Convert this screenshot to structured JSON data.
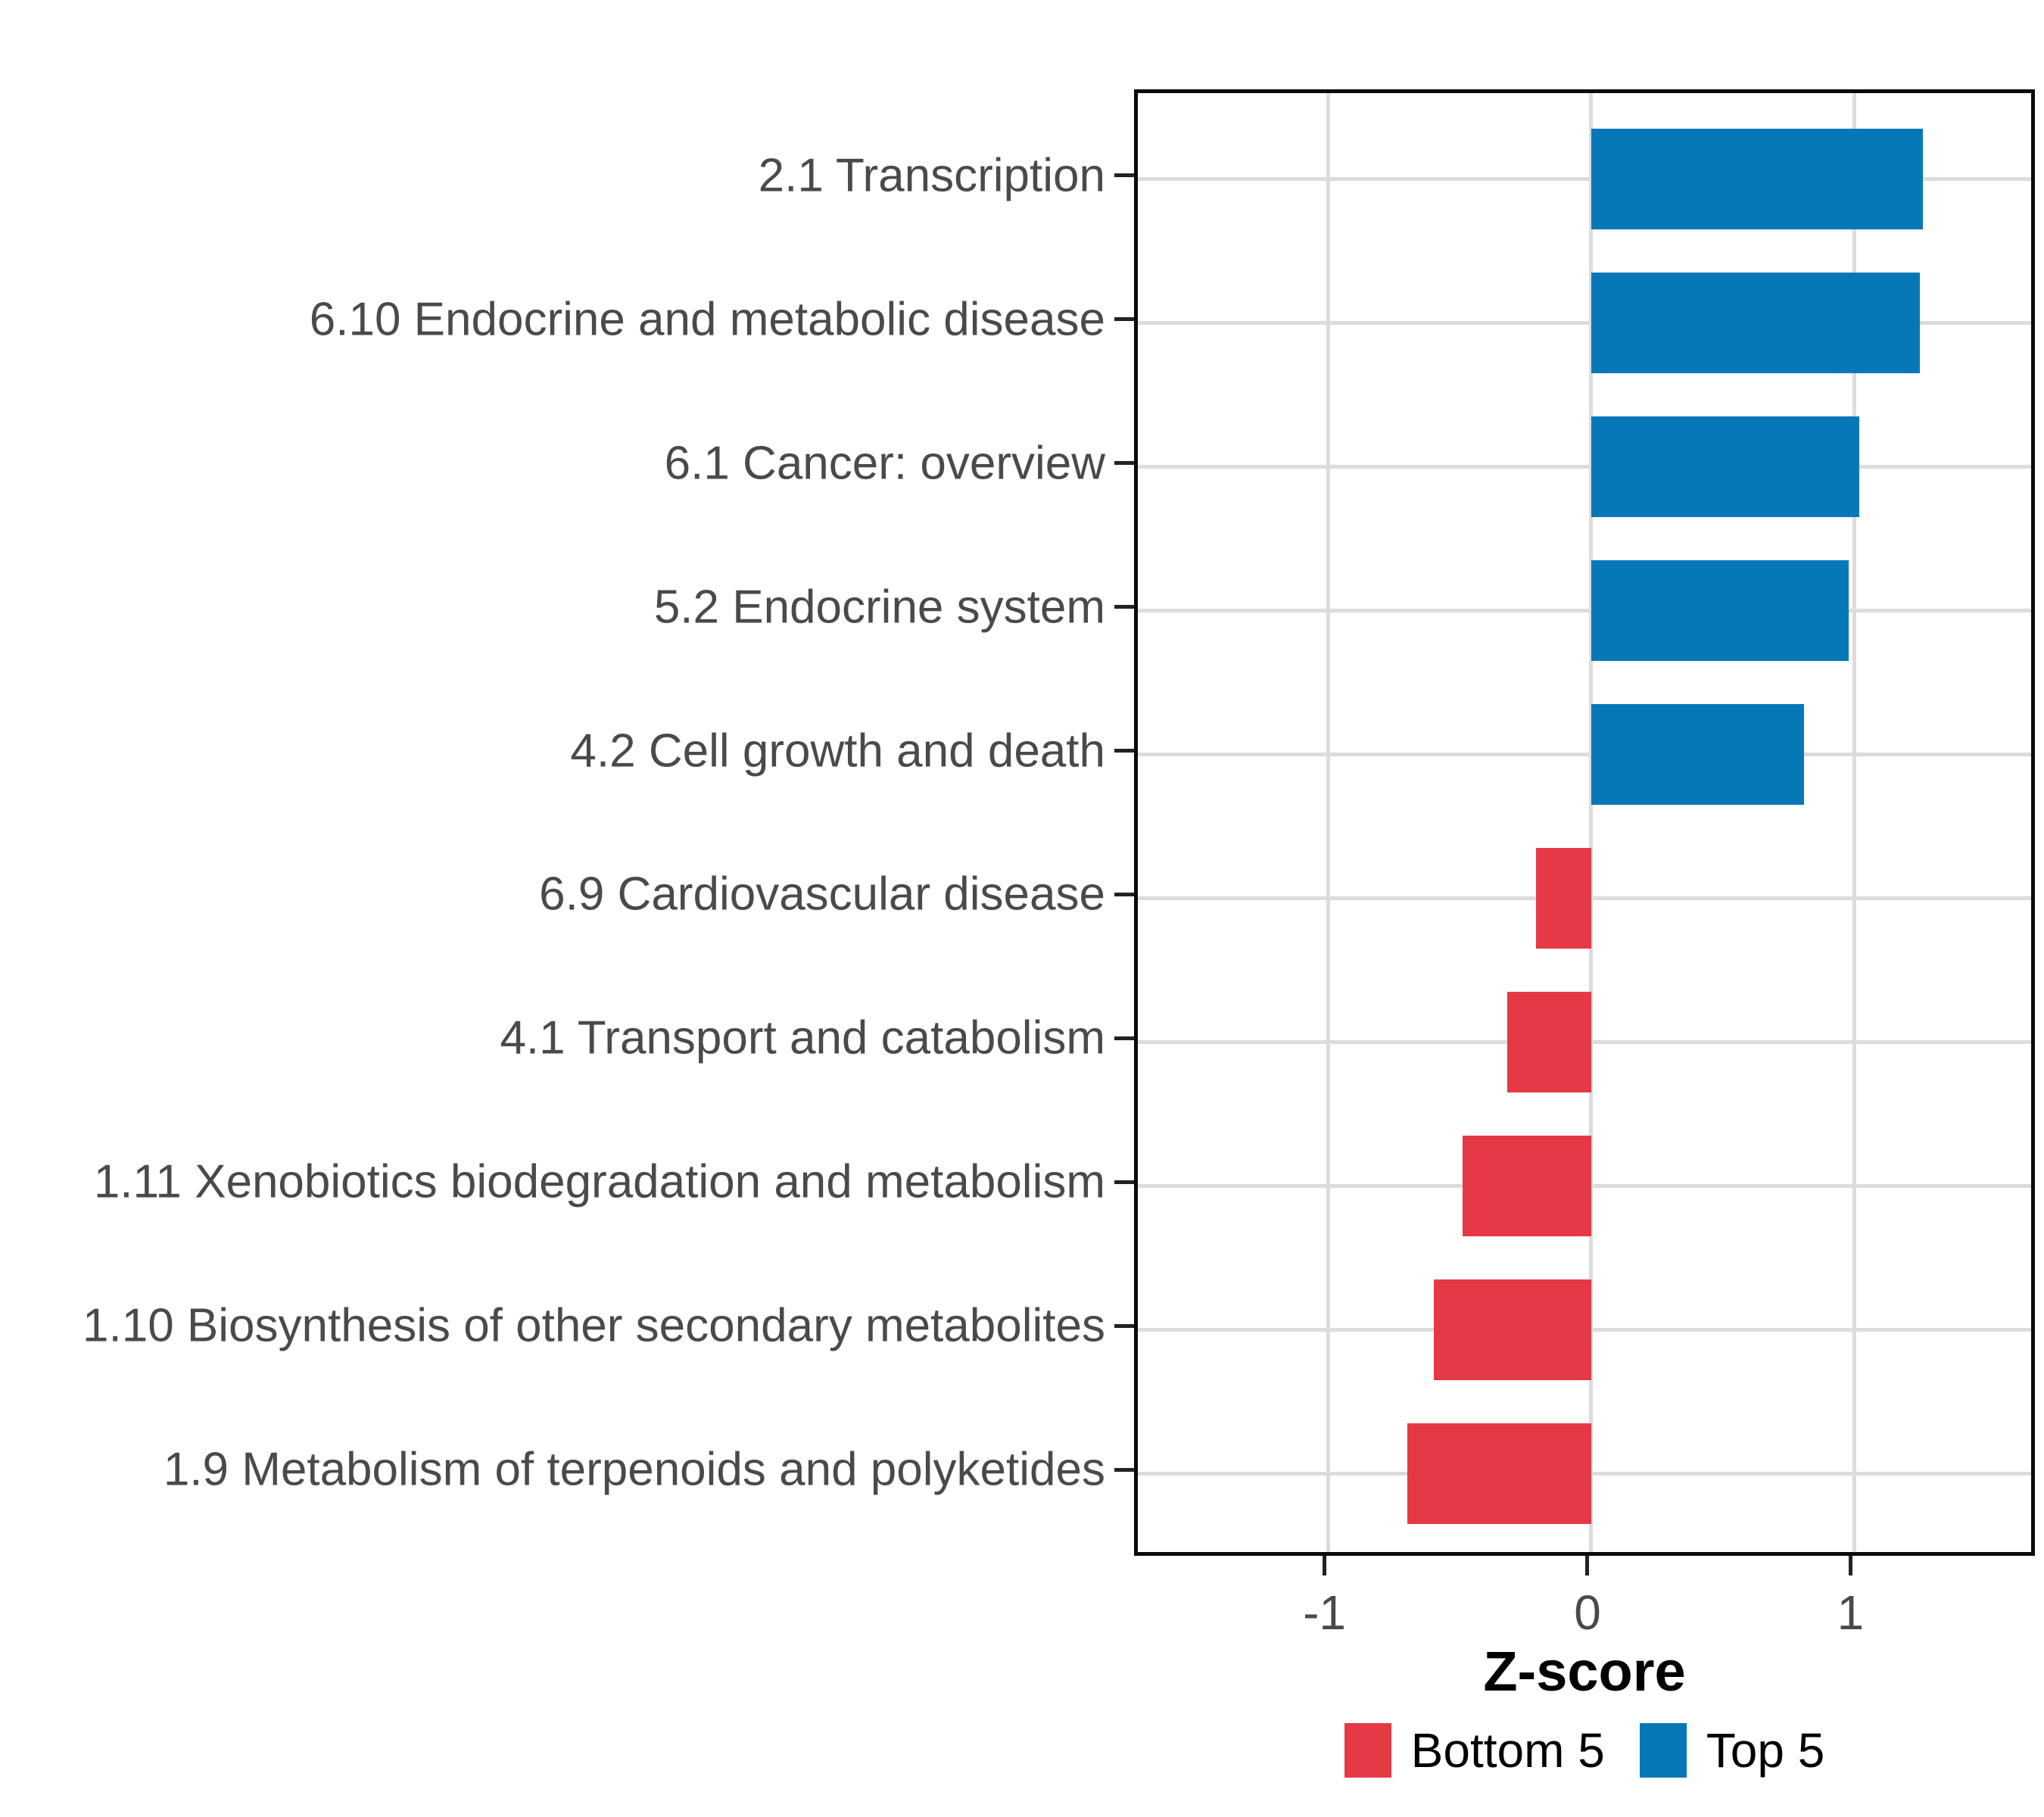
{
  "chart_data": {
    "type": "bar",
    "orientation": "horizontal",
    "title": "",
    "xlabel": "Z-score",
    "ylabel": "",
    "categories": [
      "2.1 Transcription",
      "6.10 Endocrine and metabolic disease",
      "6.1 Cancer: overview",
      "5.2 Endocrine system",
      "4.2 Cell growth and death",
      "6.9 Cardiovascular disease",
      "4.1 Transport and catabolism",
      "1.11 Xenobiotics biodegradation and metabolism",
      "1.10 Biosynthesis of other secondary metabolites",
      "1.9 Metabolism of terpenoids and polyketides"
    ],
    "values": [
      1.26,
      1.25,
      1.02,
      0.98,
      0.81,
      -0.21,
      -0.32,
      -0.49,
      -0.6,
      -0.7
    ],
    "groups": [
      "Top 5",
      "Top 5",
      "Top 5",
      "Top 5",
      "Top 5",
      "Bottom 5",
      "Bottom 5",
      "Bottom 5",
      "Bottom 5",
      "Bottom 5"
    ],
    "group_colors": {
      "Top 5": "#0778b7",
      "Bottom 5": "#e63946"
    },
    "x_ticks": [
      -1,
      0,
      1
    ],
    "x_tick_labels": [
      "-1",
      "0",
      "1"
    ],
    "xlim": [
      -1.724,
      1.701
    ],
    "bar_width_fraction": 0.7,
    "grid": "major-only",
    "legend": {
      "position": "bottom-center",
      "entries": [
        {
          "label": "Bottom 5",
          "color": "#e63946"
        },
        {
          "label": "Top 5",
          "color": "#0778b7"
        }
      ]
    }
  }
}
